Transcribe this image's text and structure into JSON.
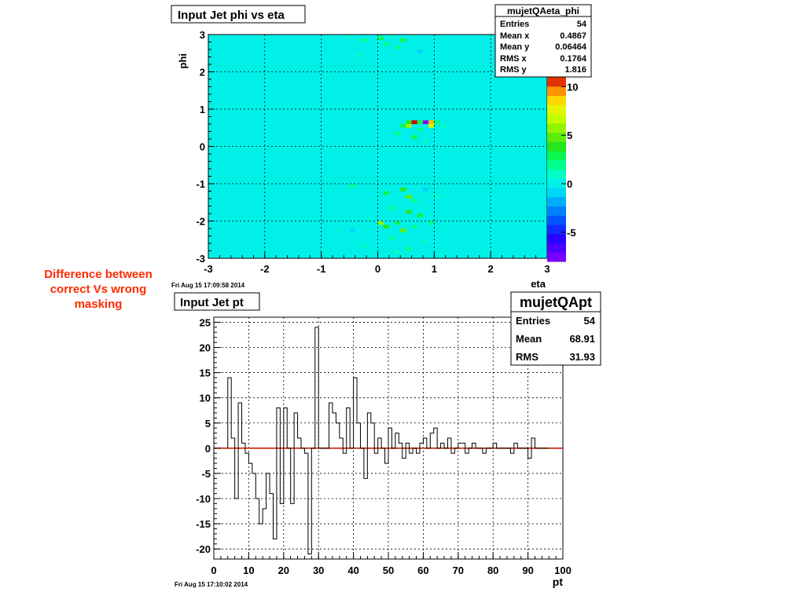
{
  "annotation": {
    "lines": [
      "Difference between",
      "correct Vs wrong",
      "masking"
    ],
    "color": "#ff2a00"
  },
  "chart_data": [
    {
      "type": "heatmap",
      "title": "Input Jet phi vs eta",
      "xlabel": "eta",
      "ylabel": "phi",
      "xlim": [
        -3,
        3
      ],
      "ylim": [
        -3,
        3
      ],
      "x_ticks": [
        "-3",
        "-2",
        "-1",
        "0",
        "1",
        "2",
        "3"
      ],
      "y_ticks": [
        "-3",
        "-2",
        "-1",
        "0",
        "1",
        "2",
        "3"
      ],
      "grid": true,
      "colorbar": {
        "zlim": [
          -8,
          11
        ],
        "ticks": [
          "-5",
          "0",
          "5",
          "10"
        ]
      },
      "background_value": 0,
      "cells": [
        {
          "eta": -0.55,
          "phi": 2.95,
          "z": 1
        },
        {
          "eta": -0.25,
          "phi": 2.85,
          "z": 2
        },
        {
          "eta": 0.05,
          "phi": 2.9,
          "z": 3
        },
        {
          "eta": 0.15,
          "phi": 2.75,
          "z": 2
        },
        {
          "eta": 0.25,
          "phi": 2.95,
          "z": 1
        },
        {
          "eta": 0.35,
          "phi": 2.65,
          "z": 2
        },
        {
          "eta": 0.45,
          "phi": 2.85,
          "z": 3
        },
        {
          "eta": 0.75,
          "phi": 2.55,
          "z": -1
        },
        {
          "eta": -0.35,
          "phi": 2.45,
          "z": 1
        },
        {
          "eta": 0.45,
          "phi": 0.55,
          "z": 3
        },
        {
          "eta": 0.55,
          "phi": 0.65,
          "z": 4
        },
        {
          "eta": 0.65,
          "phi": 0.65,
          "z": 11
        },
        {
          "eta": 0.75,
          "phi": 0.65,
          "z": 3
        },
        {
          "eta": 0.85,
          "phi": 0.65,
          "z": -8
        },
        {
          "eta": 0.95,
          "phi": 0.65,
          "z": 9
        },
        {
          "eta": 1.05,
          "phi": 0.65,
          "z": 2
        },
        {
          "eta": 0.55,
          "phi": 0.55,
          "z": 6
        },
        {
          "eta": 0.95,
          "phi": 0.55,
          "z": 7
        },
        {
          "eta": 0.35,
          "phi": 0.35,
          "z": 2
        },
        {
          "eta": 0.75,
          "phi": 0.45,
          "z": 2
        },
        {
          "eta": 0.65,
          "phi": 0.25,
          "z": 3
        },
        {
          "eta": 1.15,
          "phi": 0.55,
          "z": 1
        },
        {
          "eta": 0.85,
          "phi": 0.15,
          "z": 1
        },
        {
          "eta": -0.45,
          "phi": -1.05,
          "z": 2
        },
        {
          "eta": 0.15,
          "phi": -1.25,
          "z": 3
        },
        {
          "eta": 0.45,
          "phi": -1.15,
          "z": 4
        },
        {
          "eta": 0.55,
          "phi": -1.35,
          "z": 5
        },
        {
          "eta": 0.65,
          "phi": -1.45,
          "z": 2
        },
        {
          "eta": 0.85,
          "phi": -1.15,
          "z": -1
        },
        {
          "eta": 1.05,
          "phi": -1.35,
          "z": 1
        },
        {
          "eta": 0.25,
          "phi": -1.65,
          "z": 2
        },
        {
          "eta": 0.55,
          "phi": -1.75,
          "z": 4
        },
        {
          "eta": 0.75,
          "phi": -1.85,
          "z": 3
        },
        {
          "eta": -0.15,
          "phi": -1.95,
          "z": 1
        },
        {
          "eta": 0.05,
          "phi": -2.05,
          "z": 6
        },
        {
          "eta": 0.15,
          "phi": -2.15,
          "z": 4
        },
        {
          "eta": 0.35,
          "phi": -2.05,
          "z": 3
        },
        {
          "eta": 0.45,
          "phi": -2.25,
          "z": 5
        },
        {
          "eta": 0.65,
          "phi": -2.15,
          "z": 2
        },
        {
          "eta": 0.95,
          "phi": -2.05,
          "z": 2
        },
        {
          "eta": -0.45,
          "phi": -2.25,
          "z": -1
        },
        {
          "eta": 0.25,
          "phi": -2.45,
          "z": 2
        },
        {
          "eta": 0.85,
          "phi": -2.55,
          "z": 1
        },
        {
          "eta": 0.55,
          "phi": -2.75,
          "z": 2
        },
        {
          "eta": -0.25,
          "phi": -2.65,
          "z": 1
        },
        {
          "eta": 0.35,
          "phi": -2.85,
          "z": 1
        }
      ],
      "stats": {
        "name": "mujetQAeta_phi",
        "rows": [
          {
            "label": "Entries",
            "value": "54"
          },
          {
            "label": "Mean x",
            "value": "0.4867"
          },
          {
            "label": "Mean y",
            "value": "0.06464"
          },
          {
            "label": "RMS x",
            "value": "0.1764"
          },
          {
            "label": "RMS y",
            "value": "1.816"
          }
        ]
      },
      "timestamp": "Fri Aug 15 17:09:58 2014"
    },
    {
      "type": "line",
      "title": "Input Jet pt",
      "xlabel": "pt",
      "ylabel": "",
      "xlim": [
        0,
        100
      ],
      "ylim": [
        -22,
        26
      ],
      "x_ticks": [
        "0",
        "10",
        "20",
        "30",
        "40",
        "50",
        "60",
        "70",
        "80",
        "90",
        "100"
      ],
      "y_ticks": [
        "-20",
        "-15",
        "-10",
        "-5",
        "0",
        "5",
        "10",
        "15",
        "20",
        "25"
      ],
      "grid": true,
      "bin_width": 1,
      "series": [
        {
          "x": [
            4,
            5,
            6,
            7,
            8,
            9,
            10,
            11,
            12,
            13,
            14,
            15,
            16,
            17,
            18,
            19,
            20,
            21,
            22,
            23,
            24,
            25,
            26,
            27,
            28,
            29,
            30,
            31,
            32,
            33,
            34,
            35,
            36,
            37,
            38,
            39,
            40,
            41,
            42,
            43,
            44,
            45,
            46,
            47,
            48,
            49,
            50,
            51,
            52,
            53,
            54,
            55,
            56,
            57,
            58,
            59,
            60,
            61,
            62,
            63,
            64,
            65,
            66,
            67,
            68,
            69,
            70,
            71,
            72,
            73,
            74,
            75,
            76,
            77,
            78,
            79,
            80,
            81,
            82,
            83,
            84,
            85,
            86,
            87,
            88,
            89,
            90,
            91,
            92,
            93,
            94,
            95
          ],
          "values": [
            14,
            2,
            -10,
            9,
            1,
            -1,
            -3,
            -5,
            -10,
            -15,
            -12,
            -5,
            -9,
            -18,
            8,
            -11,
            8,
            0,
            -11,
            7,
            2,
            0,
            -1,
            -21,
            0,
            24,
            0,
            0,
            0,
            9,
            7,
            5,
            2,
            -1,
            8,
            0,
            14,
            5,
            0,
            -6,
            7,
            5,
            -1,
            2,
            0,
            -3,
            4,
            0,
            3,
            1,
            -2,
            1,
            -1,
            0,
            -1,
            1,
            2,
            0,
            3,
            4,
            0,
            1,
            0,
            2,
            -1,
            0,
            1,
            1,
            -1,
            0,
            1,
            0,
            0,
            -1,
            0,
            0,
            1,
            0,
            0,
            0,
            0,
            -1,
            1,
            0,
            0,
            0,
            -2,
            2,
            0,
            0,
            0,
            0
          ],
          "color": "#000000"
        }
      ],
      "stats": {
        "name": "mujetQApt",
        "rows": [
          {
            "label": "Entries",
            "value": "54"
          },
          {
            "label": "Mean",
            "value": "68.91"
          },
          {
            "label": "RMS",
            "value": "31.93"
          }
        ]
      },
      "timestamp": "Fri Aug 15 17:10:02 2014"
    }
  ]
}
